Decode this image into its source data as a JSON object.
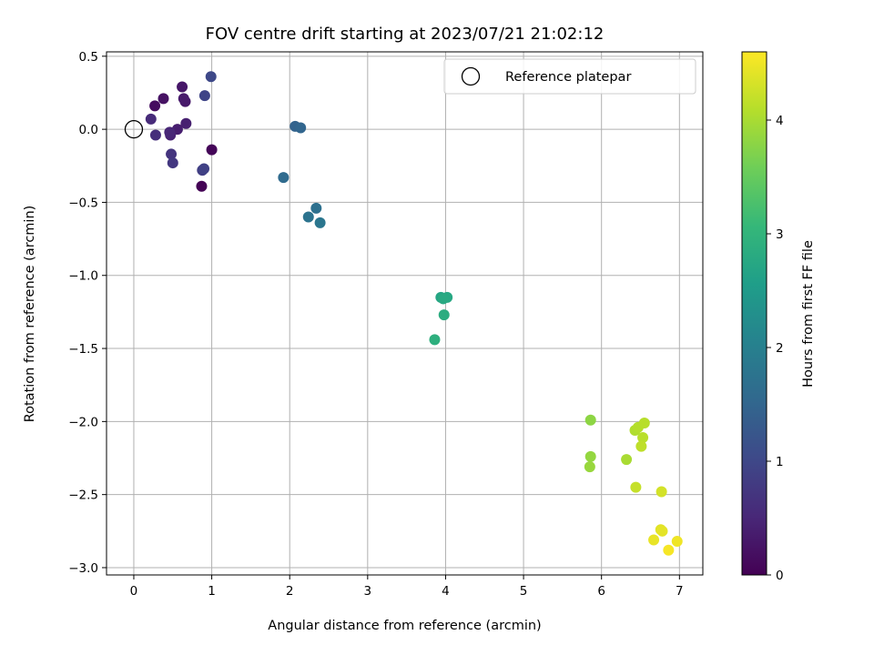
{
  "chart_data": {
    "type": "scatter",
    "title": "FOV centre drift starting at 2023/07/21 21:02:12",
    "xlabel": "Angular distance from reference (arcmin)",
    "ylabel": "Rotation from reference (arcmin)",
    "xlim": [
      -0.35,
      7.3
    ],
    "ylim": [
      -3.05,
      0.53
    ],
    "xticks": [
      0,
      1,
      2,
      3,
      4,
      5,
      6,
      7
    ],
    "yticks": [
      0.5,
      0.0,
      -0.5,
      -1.0,
      -1.5,
      -2.0,
      -2.5,
      -3.0
    ],
    "xtick_labels": [
      "0",
      "1",
      "2",
      "3",
      "4",
      "5",
      "6",
      "7"
    ],
    "ytick_labels": [
      "0.5",
      "0.0",
      "−0.5",
      "−1.0",
      "−1.5",
      "−2.0",
      "−2.5",
      "−3.0"
    ],
    "grid": true,
    "legend": {
      "position": "top-right",
      "entries": [
        "Reference platepar"
      ]
    },
    "reference_point": {
      "x": 0.0,
      "y": 0.0
    },
    "colorbar": {
      "label": "Hours from first FF file",
      "colormap": "viridis",
      "range": [
        0,
        4.6
      ],
      "ticks": [
        0,
        1,
        2,
        3,
        4
      ],
      "tick_labels": [
        "0",
        "1",
        "2",
        "3",
        "4"
      ]
    },
    "points": [
      {
        "x": 0.87,
        "y": -0.39,
        "c": 0.02
      },
      {
        "x": 1.0,
        "y": -0.14,
        "c": 0.05
      },
      {
        "x": 0.27,
        "y": 0.16,
        "c": 0.15
      },
      {
        "x": 0.38,
        "y": 0.21,
        "c": 0.22
      },
      {
        "x": 0.62,
        "y": 0.29,
        "c": 0.28
      },
      {
        "x": 0.66,
        "y": 0.19,
        "c": 0.3
      },
      {
        "x": 0.64,
        "y": 0.21,
        "c": 0.33
      },
      {
        "x": 0.56,
        "y": 0.0,
        "c": 0.38
      },
      {
        "x": 0.67,
        "y": 0.04,
        "c": 0.4
      },
      {
        "x": 0.47,
        "y": -0.04,
        "c": 0.45
      },
      {
        "x": 0.46,
        "y": -0.02,
        "c": 0.5
      },
      {
        "x": 0.22,
        "y": 0.07,
        "c": 0.55
      },
      {
        "x": 0.28,
        "y": -0.04,
        "c": 0.6
      },
      {
        "x": 0.48,
        "y": -0.17,
        "c": 0.7
      },
      {
        "x": 0.5,
        "y": -0.23,
        "c": 0.75
      },
      {
        "x": 0.88,
        "y": -0.28,
        "c": 0.85
      },
      {
        "x": 0.9,
        "y": -0.27,
        "c": 0.9
      },
      {
        "x": 0.91,
        "y": 0.23,
        "c": 0.95
      },
      {
        "x": 0.99,
        "y": 0.36,
        "c": 1.0
      },
      {
        "x": 2.07,
        "y": 0.02,
        "c": 1.45
      },
      {
        "x": 2.14,
        "y": 0.01,
        "c": 1.5
      },
      {
        "x": 1.92,
        "y": -0.33,
        "c": 1.6
      },
      {
        "x": 2.34,
        "y": -0.54,
        "c": 1.7
      },
      {
        "x": 2.24,
        "y": -0.6,
        "c": 1.75
      },
      {
        "x": 2.39,
        "y": -0.64,
        "c": 1.8
      },
      {
        "x": 3.94,
        "y": -1.15,
        "c": 2.7
      },
      {
        "x": 4.02,
        "y": -1.15,
        "c": 2.75
      },
      {
        "x": 3.97,
        "y": -1.16,
        "c": 2.78
      },
      {
        "x": 3.98,
        "y": -1.27,
        "c": 2.85
      },
      {
        "x": 3.86,
        "y": -1.44,
        "c": 2.9
      },
      {
        "x": 5.86,
        "y": -1.99,
        "c": 3.8
      },
      {
        "x": 5.86,
        "y": -2.24,
        "c": 3.85
      },
      {
        "x": 5.85,
        "y": -2.31,
        "c": 3.88
      },
      {
        "x": 6.32,
        "y": -2.26,
        "c": 4.0
      },
      {
        "x": 6.43,
        "y": -2.06,
        "c": 4.05
      },
      {
        "x": 6.47,
        "y": -2.04,
        "c": 4.08
      },
      {
        "x": 6.55,
        "y": -2.01,
        "c": 4.1
      },
      {
        "x": 6.53,
        "y": -2.11,
        "c": 4.12
      },
      {
        "x": 6.51,
        "y": -2.17,
        "c": 4.15
      },
      {
        "x": 6.44,
        "y": -2.45,
        "c": 4.2
      },
      {
        "x": 6.77,
        "y": -2.48,
        "c": 4.3
      },
      {
        "x": 6.76,
        "y": -2.74,
        "c": 4.4
      },
      {
        "x": 6.78,
        "y": -2.75,
        "c": 4.42
      },
      {
        "x": 6.67,
        "y": -2.81,
        "c": 4.45
      },
      {
        "x": 6.97,
        "y": -2.82,
        "c": 4.5
      },
      {
        "x": 6.86,
        "y": -2.88,
        "c": 4.55
      }
    ]
  }
}
